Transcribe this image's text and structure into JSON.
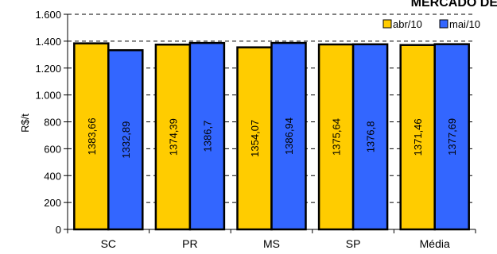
{
  "chart_data": {
    "type": "bar",
    "title": "MERCADO DE",
    "xlabel": "",
    "ylabel": "R$/t",
    "categories": [
      "SC",
      "PR",
      "MS",
      "SP",
      "Média"
    ],
    "series": [
      {
        "name": "abr/10",
        "color": "#FFCC00",
        "values": [
          1383.66,
          1374.39,
          1354.07,
          1375.64,
          1371.46
        ],
        "labels": [
          "1383,66",
          "1374,39",
          "1354,07",
          "1375,64",
          "1371,46"
        ]
      },
      {
        "name": "mai/10",
        "color": "#3366FF",
        "values": [
          1332.89,
          1386.7,
          1386.94,
          1376.8,
          1377.69
        ],
        "labels": [
          "1332,89",
          "1386,7",
          "1386,94",
          "1376,8",
          "1377,69"
        ]
      }
    ],
    "ylim": [
      0,
      1600
    ],
    "yticks": [
      0,
      200,
      400,
      600,
      800,
      1000,
      1200,
      1400,
      1600
    ],
    "ytick_labels": [
      "0",
      "200",
      "400",
      "600",
      "800",
      "1.000",
      "1.200",
      "1.400",
      "1.600"
    ],
    "grid": "dashed horizontal",
    "legend": "top-right"
  }
}
